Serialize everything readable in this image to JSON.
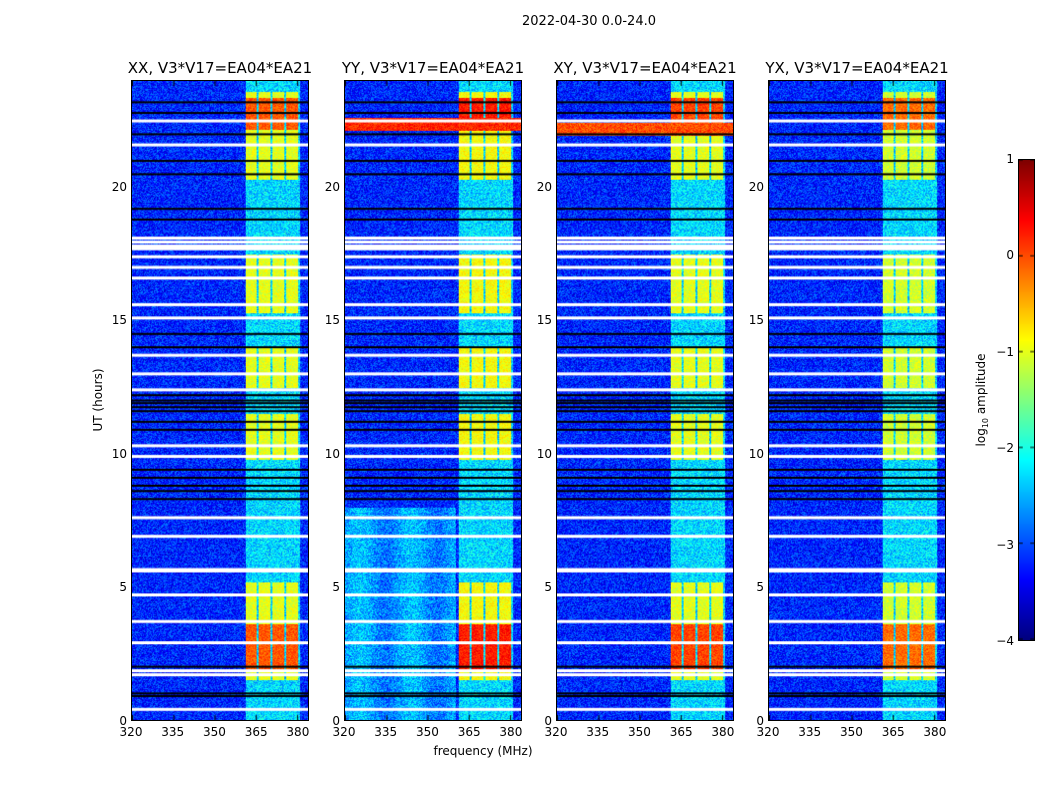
{
  "chart_data": {
    "type": "heatmap",
    "title": "2022-04-30 0.0-24.0",
    "xlabel": "frequency (MHz)",
    "ylabel": "UT (hours)",
    "xlim": [
      320,
      384
    ],
    "ylim": [
      0,
      24
    ],
    "xticks": [
      320,
      335,
      350,
      365,
      380
    ],
    "yticks": [
      0,
      5,
      10,
      15,
      20
    ],
    "panels": [
      {
        "title": "XX, V3*V17=EA04*EA21",
        "rfi_level": -1.0,
        "peak_level": 0.1,
        "band_row": null
      },
      {
        "title": "YY, V3*V17=EA04*EA21",
        "rfi_level": -0.9,
        "peak_level": 0.4,
        "band_row": 22.4
      },
      {
        "title": "XY, V3*V17=EA04*EA21",
        "rfi_level": -1.0,
        "peak_level": 0.2,
        "band_row": 22.2
      },
      {
        "title": "YX, V3*V17=EA04*EA21",
        "rfi_level": -1.1,
        "peak_level": 0.0,
        "band_row": null
      }
    ],
    "background_level": -3.2,
    "rfi_freq_range": [
      361,
      381
    ],
    "rfi_time_ranges": [
      [
        1.5,
        5.2
      ],
      [
        9.8,
        11.5
      ],
      [
        12.5,
        14.0
      ],
      [
        15.3,
        17.5
      ],
      [
        20.3,
        23.6
      ]
    ],
    "flagged_white_rows": [
      0.4,
      1.7,
      1.85,
      2.9,
      3.7,
      4.7,
      5.6,
      5.65,
      6.9,
      7.6,
      9.9,
      10.3,
      12.4,
      13.0,
      13.7,
      15.1,
      15.6,
      16.6,
      17.0,
      17.4,
      17.7,
      17.8,
      17.95,
      18.1,
      21.6,
      22.5
    ],
    "flagged_black_rows": [
      0.9,
      1.0,
      2.0,
      8.3,
      8.6,
      8.8,
      9.1,
      9.4,
      10.9,
      11.2,
      11.6,
      11.75,
      11.9,
      12.0,
      12.2,
      14.0,
      14.5,
      18.8,
      19.2,
      20.5,
      21.0,
      22.0,
      22.8,
      23.2
    ],
    "colorbar": {
      "label": "log10 amplitude",
      "label_base": "log",
      "label_sub": "10",
      "label_rest": " amplitude",
      "range": [
        -4,
        1
      ],
      "ticks": [
        "1",
        "0",
        "−1",
        "−2",
        "−3",
        "−4"
      ],
      "tick_values": [
        1,
        0,
        -1,
        -2,
        -3,
        -4
      ],
      "colormap": "jet"
    }
  }
}
